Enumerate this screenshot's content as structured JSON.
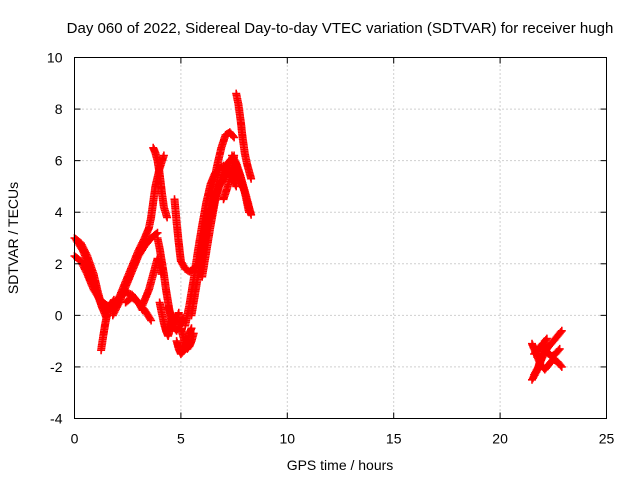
{
  "chart_data": {
    "type": "scatter",
    "title": "Day 060 of 2022, Sidereal Day-to-day VTEC variation (SDTVAR) for receiver hugh",
    "xlabel": "GPS time / hours",
    "ylabel": "SDTVAR / TECUs",
    "xlim": [
      0,
      25
    ],
    "ylim": [
      -4,
      10
    ],
    "xticks": [
      0,
      5,
      10,
      15,
      20,
      25
    ],
    "yticks": [
      -4,
      -2,
      0,
      2,
      4,
      6,
      8,
      10
    ],
    "xtick_labels": [
      "0",
      "5",
      "10",
      "15",
      "20",
      "25"
    ],
    "ytick_labels": [
      "-4",
      "-2",
      "0",
      "2",
      "4",
      "6",
      "8",
      "10"
    ],
    "grid": true,
    "legend": "none",
    "marker": "plus",
    "series": [
      {
        "color": "#ff0000",
        "tracks": [
          {
            "x": [
              0.0,
              0.3,
              0.6,
              0.9,
              1.1,
              1.3,
              1.5
            ],
            "y": [
              3.0,
              2.8,
              2.3,
              1.6,
              0.9,
              0.3,
              -0.1
            ]
          },
          {
            "x": [
              0.0,
              0.3,
              0.6,
              0.9,
              1.2,
              1.5,
              1.8,
              2.0
            ],
            "y": [
              2.3,
              2.1,
              1.6,
              1.0,
              0.6,
              0.4,
              0.3,
              0.5
            ]
          },
          {
            "x": [
              0.1,
              0.4,
              0.7,
              1.0,
              1.3
            ],
            "y": [
              2.9,
              2.5,
              1.9,
              1.0,
              0.3
            ]
          },
          {
            "x": [
              1.25,
              1.35,
              1.45,
              1.55,
              1.7,
              1.85
            ],
            "y": [
              -1.35,
              -0.8,
              -0.3,
              0.1,
              0.4,
              0.6
            ]
          },
          {
            "x": [
              1.8,
              2.1,
              2.4,
              2.7,
              3.0,
              3.3,
              3.6,
              3.9
            ],
            "y": [
              0.0,
              0.5,
              1.1,
              1.7,
              2.3,
              2.7,
              3.0,
              3.2
            ]
          },
          {
            "x": [
              1.5,
              1.8,
              2.1,
              2.4,
              2.7,
              3.0,
              3.2
            ],
            "y": [
              0.2,
              0.4,
              0.7,
              0.9,
              0.8,
              0.5,
              0.2
            ]
          },
          {
            "x": [
              2.0,
              2.5,
              3.0,
              3.3,
              3.5,
              3.6,
              3.7,
              3.8,
              4.0,
              4.2
            ],
            "y": [
              0.5,
              1.5,
              2.5,
              3.0,
              3.4,
              3.8,
              4.4,
              5.0,
              5.7,
              6.2
            ]
          },
          {
            "x": [
              3.2,
              3.5,
              3.7,
              3.9,
              4.0,
              4.1
            ],
            "y": [
              0.4,
              1.0,
              1.6,
              2.2,
              2.0,
              1.6
            ]
          },
          {
            "x": [
              2.4,
              2.7,
              3.0,
              3.3,
              3.6
            ],
            "y": [
              0.5,
              0.7,
              0.5,
              0.2,
              -0.2
            ]
          },
          {
            "x": [
              3.7,
              3.8,
              3.9,
              4.0,
              4.1,
              4.2,
              4.35
            ],
            "y": [
              6.5,
              6.3,
              6.0,
              5.5,
              4.8,
              4.2,
              3.8
            ]
          },
          {
            "x": [
              3.9,
              4.0,
              4.1,
              4.2,
              4.3,
              4.4,
              4.5,
              4.6,
              4.8,
              5.0,
              5.1
            ],
            "y": [
              3.0,
              2.6,
              2.1,
              1.6,
              1.0,
              0.5,
              0.0,
              -0.4,
              -0.6,
              -0.3,
              -0.1
            ]
          },
          {
            "x": [
              4.0,
              4.1,
              4.2,
              4.3,
              4.4,
              4.5,
              4.6
            ],
            "y": [
              0.5,
              0.1,
              -0.3,
              -0.6,
              -0.8,
              -0.5,
              0.0
            ]
          },
          {
            "x": [
              4.4,
              4.5,
              4.6,
              4.7,
              4.8,
              4.9
            ],
            "y": [
              0.3,
              0.1,
              -0.1,
              -0.3,
              -0.2,
              0.1
            ]
          },
          {
            "x": [
              4.8,
              4.9,
              5.0,
              5.1,
              5.2,
              5.3,
              5.4,
              5.5
            ],
            "y": [
              -1.0,
              -1.3,
              -1.5,
              -1.4,
              -1.2,
              -1.0,
              -0.7,
              -0.5
            ]
          },
          {
            "x": [
              5.0,
              5.1,
              5.2,
              5.3,
              5.4,
              5.5,
              5.6
            ],
            "y": [
              -0.5,
              -0.8,
              -1.1,
              -1.3,
              -1.2,
              -1.0,
              -0.7
            ]
          },
          {
            "x": [
              4.7,
              4.8,
              4.9,
              5.0,
              5.2,
              5.4,
              5.6,
              5.8,
              6.0
            ],
            "y": [
              4.5,
              3.6,
              2.8,
              2.1,
              1.8,
              1.7,
              1.8,
              2.0,
              2.2
            ]
          },
          {
            "x": [
              5.2,
              5.4,
              5.6,
              5.8,
              6.0,
              6.2,
              6.4,
              6.6,
              6.8,
              7.0,
              7.2,
              7.4,
              7.6
            ],
            "y": [
              -0.4,
              0.4,
              1.4,
              2.5,
              3.5,
              4.4,
              5.1,
              5.5,
              5.7,
              5.8,
              5.6,
              5.4,
              5.0
            ]
          },
          {
            "x": [
              5.5,
              5.7,
              5.9,
              6.1,
              6.3,
              6.5,
              6.7,
              6.9,
              7.1,
              7.3,
              7.5
            ],
            "y": [
              0.0,
              1.0,
              2.0,
              3.0,
              4.0,
              5.0,
              5.8,
              6.5,
              7.0,
              7.1,
              6.9
            ]
          },
          {
            "x": [
              6.0,
              6.2,
              6.4,
              6.6,
              6.8,
              7.0,
              7.2,
              7.4,
              7.6,
              7.8,
              8.0,
              8.2
            ],
            "y": [
              1.5,
              2.5,
              3.5,
              4.4,
              5.0,
              5.3,
              5.5,
              5.7,
              5.5,
              5.2,
              4.8,
              4.2
            ]
          },
          {
            "x": [
              6.4,
              6.6,
              6.8,
              7.0,
              7.2,
              7.4,
              7.6,
              7.8,
              8.0,
              8.2
            ],
            "y": [
              3.8,
              4.5,
              5.1,
              5.6,
              5.9,
              6.1,
              5.8,
              5.4,
              4.8,
              4.0
            ]
          },
          {
            "x": [
              7.6,
              7.7,
              7.8,
              7.9,
              8.0,
              8.1,
              8.2,
              8.3
            ],
            "y": [
              8.6,
              8.2,
              7.6,
              6.9,
              6.3,
              5.9,
              5.6,
              5.3
            ]
          },
          {
            "x": [
              7.4,
              7.6,
              7.8,
              8.0,
              8.2,
              8.3
            ],
            "y": [
              6.2,
              5.9,
              5.4,
              4.8,
              4.2,
              3.9
            ]
          },
          {
            "x": [
              7.0,
              7.2,
              7.4,
              7.5
            ],
            "y": [
              4.5,
              5.0,
              5.6,
              6.2
            ]
          },
          {
            "x": [
              21.5,
              21.7,
              21.9,
              22.1,
              22.3,
              22.5,
              22.7,
              22.9
            ],
            "y": [
              -2.5,
              -2.2,
              -1.8,
              -1.4,
              -1.2,
              -1.0,
              -0.8,
              -0.6
            ]
          },
          {
            "x": [
              21.5,
              21.7,
              21.9,
              22.1,
              22.3,
              22.5,
              22.7,
              22.9
            ],
            "y": [
              -1.1,
              -1.5,
              -1.9,
              -2.1,
              -1.9,
              -1.7,
              -1.8,
              -2.0
            ]
          },
          {
            "x": [
              21.6,
              21.8,
              22.0,
              22.2,
              22.4,
              22.6,
              22.8
            ],
            "y": [
              -1.5,
              -1.3,
              -1.1,
              -1.4,
              -1.6,
              -1.5,
              -1.3
            ]
          },
          {
            "x": [
              21.6,
              21.8,
              22.0,
              22.1,
              22.2
            ],
            "y": [
              -2.3,
              -2.0,
              -1.4,
              -1.0,
              -0.9
            ]
          }
        ]
      }
    ]
  }
}
